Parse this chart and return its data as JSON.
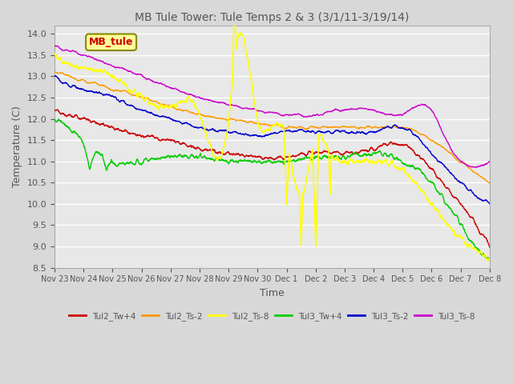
{
  "title": "MB Tule Tower: Tule Temps 2 & 3 (3/1/11-3/19/14)",
  "xlabel": "Time",
  "ylabel": "Temperature (C)",
  "ylim": [
    8.5,
    14.2
  ],
  "xlim": [
    0,
    15
  ],
  "xtick_labels": [
    "Nov 23",
    "Nov 24",
    "Nov 25",
    "Nov 26",
    "Nov 27",
    "Nov 28",
    "Nov 29",
    "Nov 30",
    "Dec 1",
    "Dec 2",
    "Dec 3",
    "Dec 4",
    "Dec 5",
    "Dec 6",
    "Dec 7",
    "Dec 8"
  ],
  "background_color": "#d8d8d8",
  "plot_bg_color": "#e8e8e8",
  "grid_color": "#ffffff",
  "series": {
    "Tul2_Tw+4": {
      "color": "#cc0000",
      "lw": 1.0
    },
    "Tul2_Ts-2": {
      "color": "#ff9900",
      "lw": 1.0
    },
    "Tul2_Ts-8": {
      "color": "#ffff00",
      "lw": 1.2
    },
    "Tul3_Tw+4": {
      "color": "#00cc00",
      "lw": 1.0
    },
    "Tul3_Ts-2": {
      "color": "#0000cc",
      "lw": 1.0
    },
    "Tul3_Ts-8": {
      "color": "#cc00cc",
      "lw": 1.0
    }
  },
  "legend_box_color": "#ffff99",
  "legend_box_edge": "#888800",
  "legend_text": "MB_tule",
  "legend_text_color": "#cc0000"
}
